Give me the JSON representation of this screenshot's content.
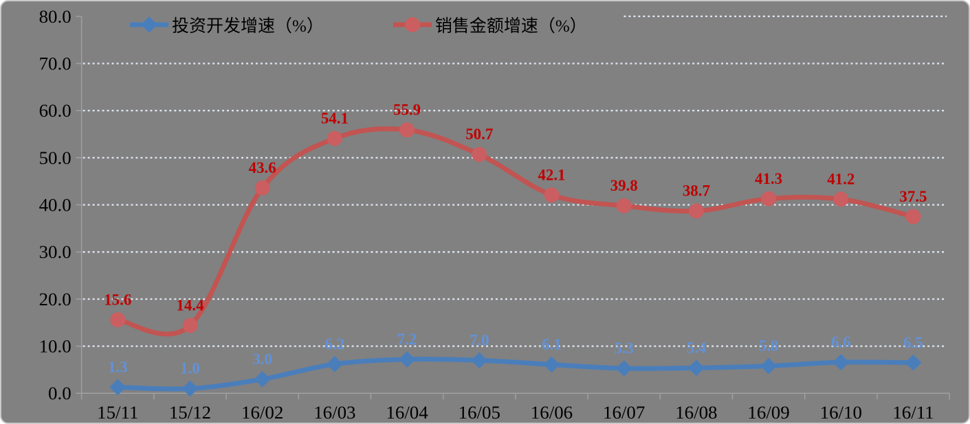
{
  "chart_data": {
    "type": "line",
    "smoothed": true,
    "title": "",
    "xlabel": "",
    "ylabel": "",
    "categories": [
      "15/11",
      "15/12",
      "16/02",
      "16/03",
      "16/04",
      "16/05",
      "16/06",
      "16/07",
      "16/08",
      "16/09",
      "16/10",
      "16/11"
    ],
    "series": [
      {
        "name": "投资开发增速（%）",
        "values": [
          1.3,
          1.0,
          3.0,
          6.2,
          7.2,
          7.0,
          6.1,
          5.3,
          5.4,
          5.8,
          6.6,
          6.5
        ],
        "color": "#4A7EBB",
        "marker": "diamond",
        "marker_color": "#4A7EBB",
        "label_color": "#6292D9"
      },
      {
        "name": "销售金额增速（%）",
        "values": [
          15.6,
          14.4,
          43.6,
          54.1,
          55.9,
          50.7,
          42.1,
          39.8,
          38.7,
          41.3,
          41.2,
          37.5
        ],
        "color": "#C25452",
        "marker": "circle",
        "marker_color": "#CB5E60",
        "label_color": "#C00000"
      }
    ],
    "ylim": [
      0,
      80
    ],
    "ytick_step": 10,
    "ytick_labels": [
      "0.0",
      "10.0",
      "20.0",
      "30.0",
      "40.0",
      "50.0",
      "60.0",
      "70.0",
      "80.0"
    ],
    "grid": "horizontal-dotted",
    "legend_position": "top"
  },
  "colors": {
    "background": "#818181",
    "grid": "#DEE4EF",
    "axis": "#A0A1A3",
    "axis_text": "#000000",
    "frame_border": "#C9C9C9"
  }
}
